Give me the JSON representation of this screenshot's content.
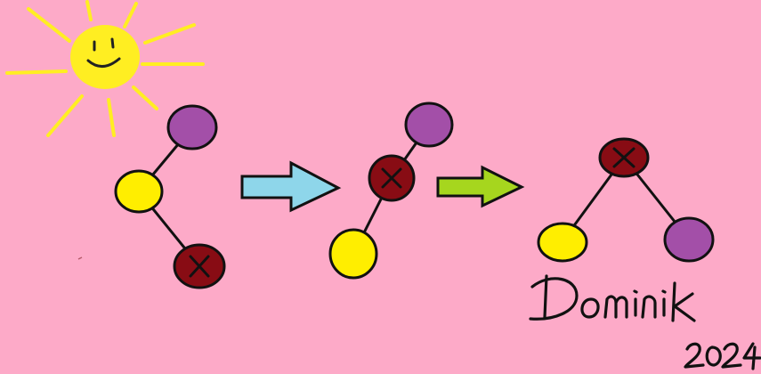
{
  "background_color": "#fdaac8",
  "sun": {
    "icon": "smiling-sun-icon",
    "face_color": "#ffee22",
    "ray_color": "#ffee22",
    "feature_color": "#222222"
  },
  "node_colors": {
    "purple": "#a34fa8",
    "yellow": "#ffee00",
    "dark_red": "#880c14",
    "outline": "#111111",
    "cross": "#111111",
    "edge": "#111111"
  },
  "arrows": [
    {
      "icon": "right-arrow-icon",
      "color": "#8ed6ea"
    },
    {
      "icon": "right-arrow-icon",
      "color": "#a6d61e"
    }
  ],
  "signature": {
    "name": "Dominik",
    "year": "2024",
    "color": "#111111"
  }
}
